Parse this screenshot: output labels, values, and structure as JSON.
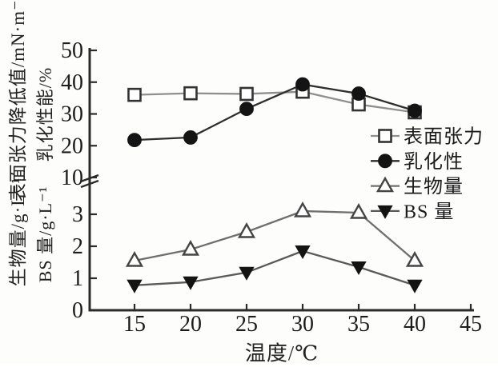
{
  "chart_data": {
    "type": "line",
    "title": "",
    "xlabel": "温度/℃",
    "x": [
      15,
      20,
      25,
      30,
      35,
      40
    ],
    "x_ticks": [
      15,
      20,
      25,
      30,
      35,
      40,
      45
    ],
    "x_range": [
      11,
      45
    ],
    "axis_break": true,
    "upper_axis": {
      "label_outer": "表面张力降低值/mN·m⁻¹",
      "label_inner": "乳化性能/%",
      "ticks": [
        10,
        20,
        30,
        40,
        50
      ],
      "range": [
        10,
        50
      ]
    },
    "lower_axis": {
      "label_outer": "生物量/g·L⁻¹",
      "label_inner": "BS 量/g·L⁻¹",
      "ticks": [
        0,
        1,
        2,
        3
      ],
      "range": [
        0,
        3.3
      ]
    },
    "series": [
      {
        "id": "surface-tension",
        "name": "表面张力",
        "axis": "upper",
        "marker": "square-open",
        "values": [
          36,
          36.5,
          36.3,
          37,
          33,
          30.5
        ],
        "line_color": "#8f8f8f",
        "marker_color": "#333333"
      },
      {
        "id": "emulsification",
        "name": "乳化性",
        "axis": "upper",
        "marker": "circle-filled",
        "values": [
          21.8,
          22.6,
          31.6,
          39.3,
          36.4,
          31
        ],
        "line_color": "#2e2e2e",
        "marker_color": "#141414"
      },
      {
        "id": "biomass",
        "name": "生物量",
        "axis": "lower",
        "marker": "triangle-open",
        "values": [
          1.55,
          1.9,
          2.45,
          3.1,
          3.05,
          1.55
        ],
        "line_color": "#6f6f6f",
        "marker_color": "#454545"
      },
      {
        "id": "bs-amount",
        "name": "BS 量",
        "axis": "lower",
        "marker": "triangle-down-filled",
        "values": [
          0.78,
          0.88,
          1.18,
          1.85,
          1.35,
          0.78
        ],
        "line_color": "#5a5a5a",
        "marker_color": "#141414"
      }
    ],
    "legend": {
      "position": "right",
      "entries": [
        "表面张力",
        "乳化性",
        "生物量",
        "BS 量"
      ]
    },
    "grid": false
  },
  "colors": {
    "ink": "#1c1c1c",
    "axis": "#2b2b2b",
    "background": "#fdfdfc"
  }
}
